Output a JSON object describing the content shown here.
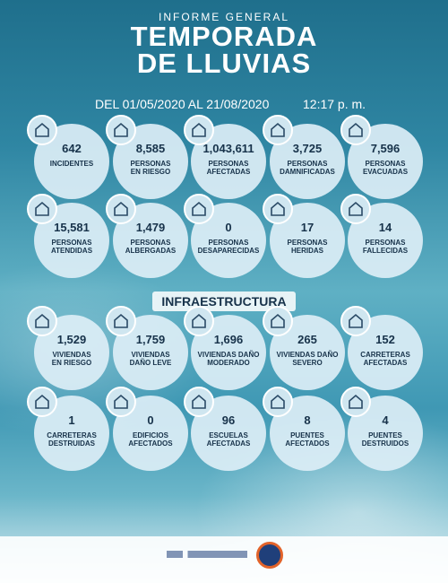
{
  "header": {
    "subtitle": "INFORME GENERAL",
    "title": "TEMPORADA\nDE LLUVIAS",
    "date_range": "DEL 01/05/2020 AL 21/08/2020",
    "time": "12:17 p. m."
  },
  "people": {
    "items": [
      {
        "value": "642",
        "label": "INCIDENTES"
      },
      {
        "value": "8,585",
        "label": "PERSONAS\nEN RIESGO"
      },
      {
        "value": "1,043,611",
        "label": "PERSONAS\nAFECTADAS"
      },
      {
        "value": "3,725",
        "label": "PERSONAS\nDAMNIFICADAS"
      },
      {
        "value": "7,596",
        "label": "PERSONAS\nEVACUADAS"
      },
      {
        "value": "15,581",
        "label": "PERSONAS\nATENDIDAS"
      },
      {
        "value": "1,479",
        "label": "PERSONAS\nALBERGADAS"
      },
      {
        "value": "0",
        "label": "PERSONAS\nDESAPARECIDAS"
      },
      {
        "value": "17",
        "label": "PERSONAS\nHERIDAS"
      },
      {
        "value": "14",
        "label": "PERSONAS\nFALLECIDAS"
      }
    ]
  },
  "infrastructure": {
    "title": "INFRAESTRUCTURA",
    "items": [
      {
        "value": "1,529",
        "label": "VIVIENDAS\nEN RIESGO"
      },
      {
        "value": "1,759",
        "label": "VIVIENDAS\nDAÑO LEVE"
      },
      {
        "value": "1,696",
        "label": "VIVIENDAS DAÑO\nMODERADO"
      },
      {
        "value": "265",
        "label": "VIVIENDAS DAÑO\nSEVERO"
      },
      {
        "value": "152",
        "label": "CARRETERAS\nAFECTADAS"
      },
      {
        "value": "1",
        "label": "CARRETERAS\nDESTRUIDAS"
      },
      {
        "value": "0",
        "label": "EDIFICIOS\nAFECTADOS"
      },
      {
        "value": "96",
        "label": "ESCUELAS\nAFECTADAS"
      },
      {
        "value": "8",
        "label": "PUENTES\nAFECTADOS"
      },
      {
        "value": "4",
        "label": "PUENTES\nDESTRUIDOS"
      }
    ]
  }
}
